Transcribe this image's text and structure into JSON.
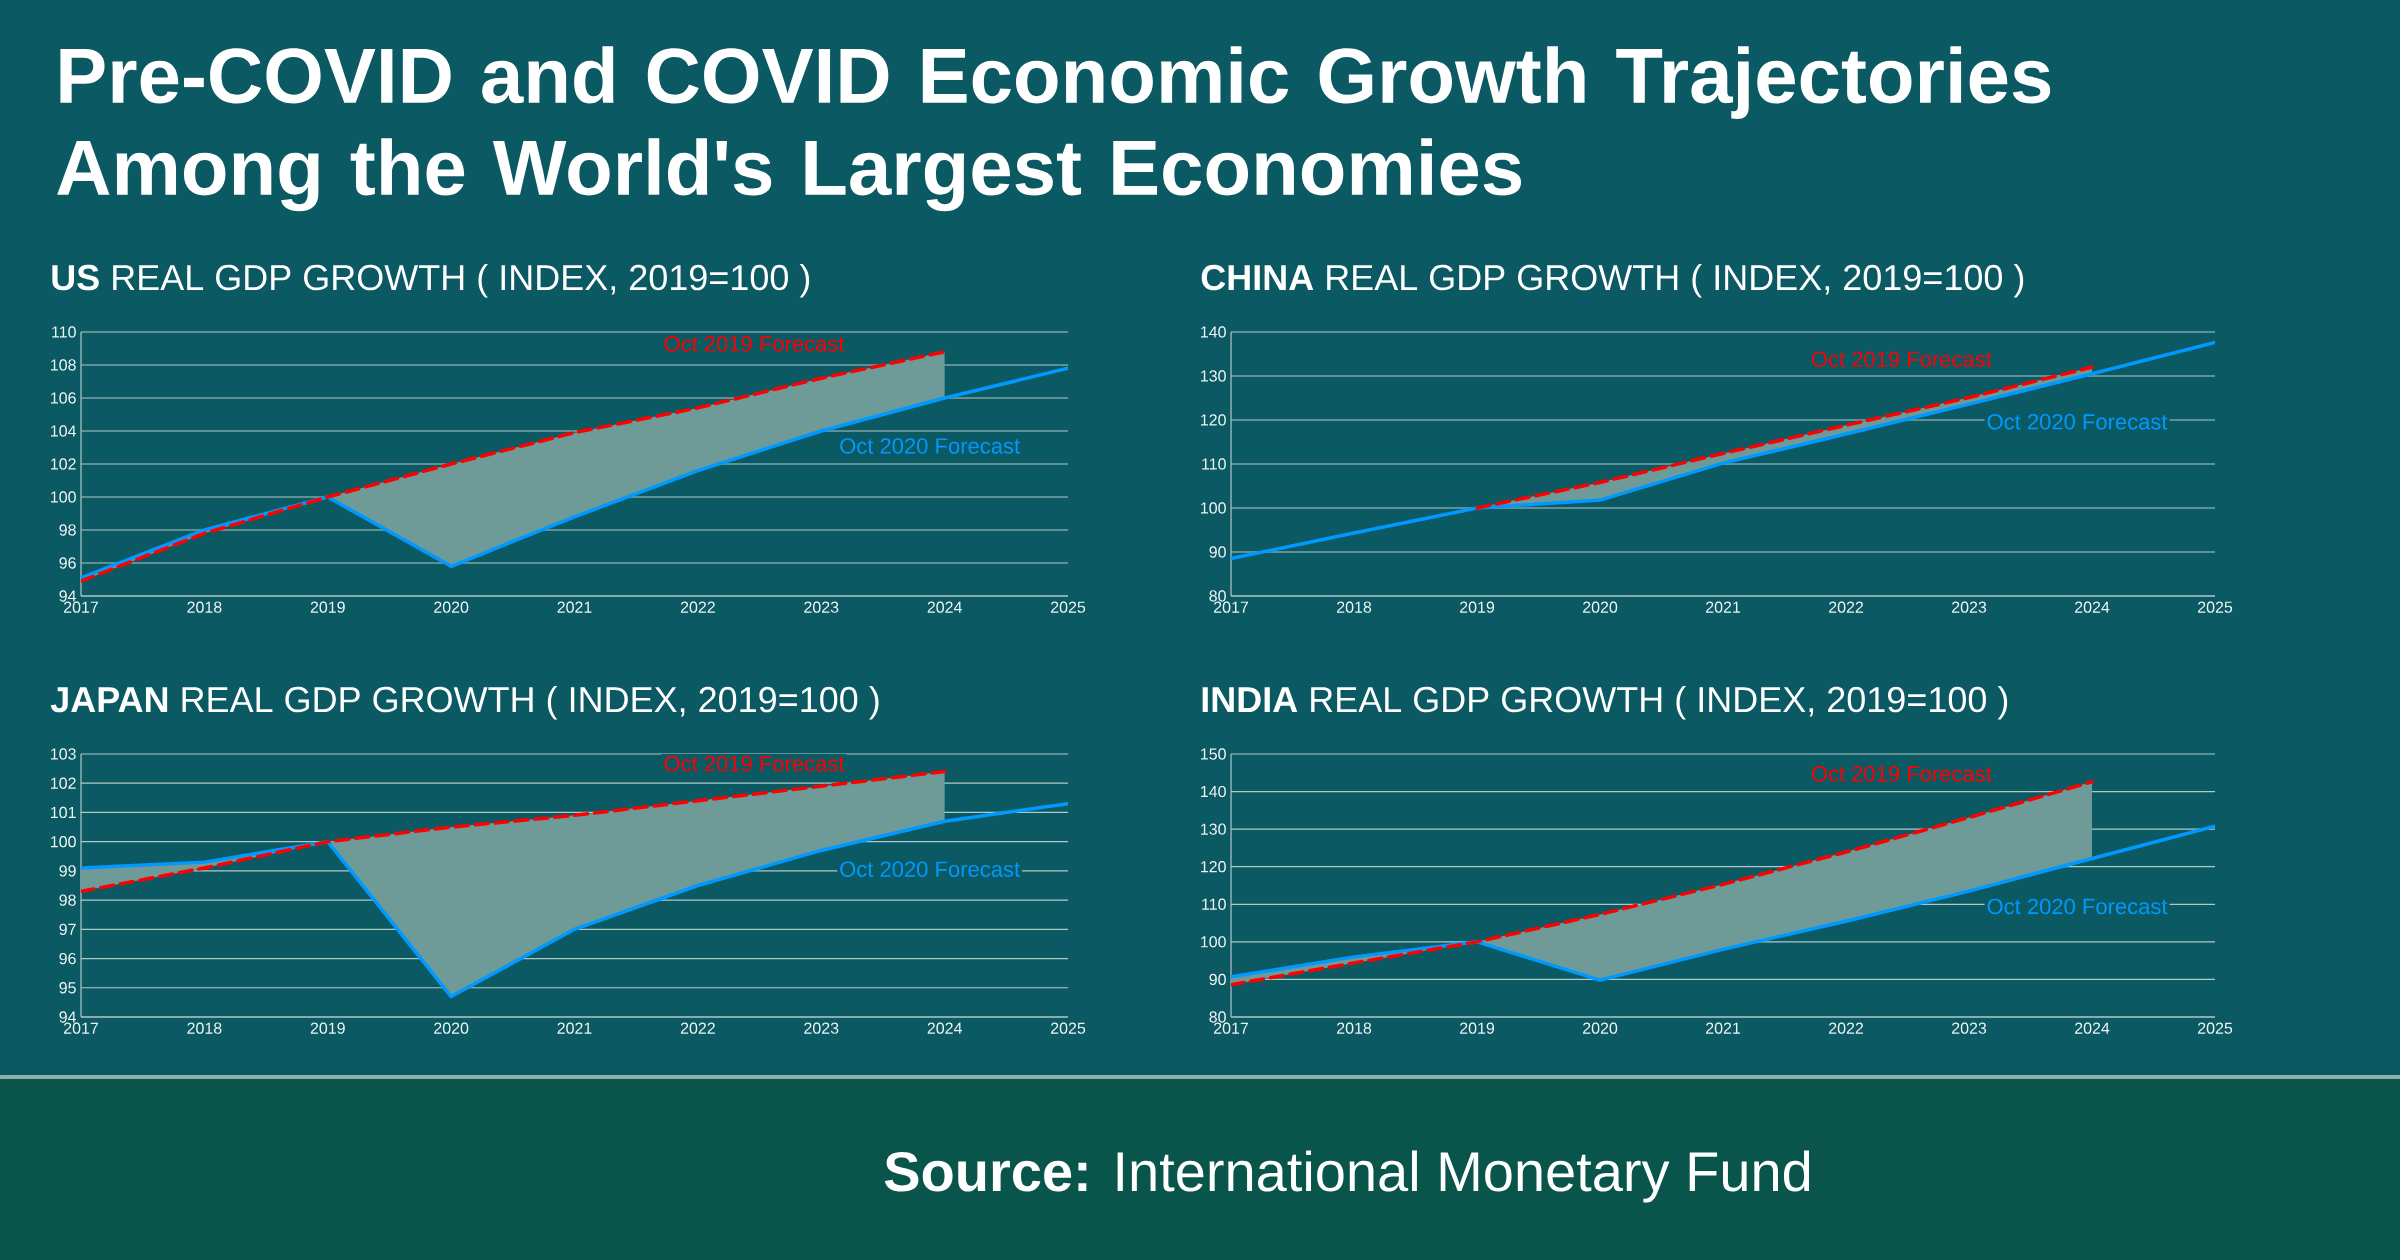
{
  "chart_data": [
    {
      "type": "other",
      "title": "Pre-COVID and COVID Economic Growth Trajectories Among the World's Largest Economies",
      "annotations": [
        "**Source:** International Monetary Fund"
      ]
    },
    {
      "type": "line",
      "title": "**US** REAL GDP GROWTH ( INDEX, 2019=100 )",
      "x": [
        2017,
        2018,
        2019,
        2020,
        2021,
        2022,
        2023,
        2024,
        2025
      ],
      "xlim": [
        2017,
        2025
      ],
      "xticks": [
        2017,
        2018,
        2019,
        2020,
        2021,
        2022,
        2023,
        2024,
        2025
      ],
      "ylim": [
        94,
        110
      ],
      "yticks": [
        94,
        96,
        98,
        100,
        102,
        104,
        106,
        108,
        110
      ],
      "grid": "y",
      "series": [
        {
          "name": "Oct 2020 Forecast",
          "color": "#0099ff",
          "line_style": "solid",
          "values": [
            95.1,
            98.0,
            100,
            95.8,
            98.8,
            101.6,
            104.0,
            106.0,
            107.8
          ]
        },
        {
          "name": "Oct 2019 Forecast",
          "color": "#ff0000",
          "line_style": "dashed",
          "values": [
            94.9,
            97.8,
            100,
            102.0,
            103.9,
            105.4,
            107.2,
            108.8,
            null
          ],
          "lower": [
            94.9,
            97.8,
            100,
            95.8,
            98.8,
            101.6,
            104.0,
            106.0,
            null
          ],
          "upper": [
            95.1,
            98.0,
            100,
            102.0,
            103.9,
            105.4,
            107.2,
            108.8,
            null
          ]
        }
      ]
    },
    {
      "type": "line",
      "title": "**CHINA** REAL GDP GROWTH ( INDEX, 2019=100 )",
      "x": [
        2017,
        2018,
        2019,
        2020,
        2021,
        2022,
        2023,
        2024,
        2025
      ],
      "xlim": [
        2017,
        2025
      ],
      "xticks": [
        2017,
        2018,
        2019,
        2020,
        2021,
        2022,
        2023,
        2024,
        2025
      ],
      "ylim": [
        80,
        140
      ],
      "yticks": [
        80,
        90,
        100,
        110,
        120,
        130,
        140
      ],
      "grid": "y",
      "series": [
        {
          "name": "Oct 2020 Forecast",
          "color": "#0099ff",
          "line_style": "solid",
          "values": [
            88.5,
            94.3,
            100,
            101.8,
            110.2,
            116.8,
            123.6,
            130.5,
            137.6
          ]
        },
        {
          "name": "Oct 2019 Forecast",
          "color": "#ff0000",
          "line_style": "dashed",
          "values": [
            null,
            null,
            100,
            105.8,
            112.4,
            118.8,
            125.1,
            132.0,
            null
          ],
          "lower": [
            null,
            null,
            100,
            101.8,
            110.2,
            116.8,
            123.6,
            130.5,
            null
          ],
          "upper": [
            null,
            null,
            100,
            105.8,
            112.4,
            118.8,
            125.1,
            132.0,
            null
          ]
        }
      ]
    },
    {
      "type": "line",
      "title": "**JAPAN** REAL GDP GROWTH ( INDEX, 2019=100 )",
      "x": [
        2017,
        2018,
        2019,
        2020,
        2021,
        2022,
        2023,
        2024,
        2025
      ],
      "xlim": [
        2017,
        2025
      ],
      "xticks": [
        2017,
        2018,
        2019,
        2020,
        2021,
        2022,
        2023,
        2024,
        2025
      ],
      "ylim": [
        94,
        103
      ],
      "yticks": [
        94,
        95,
        96,
        97,
        98,
        99,
        100,
        101,
        102,
        103
      ],
      "grid": "y",
      "series": [
        {
          "name": "Oct 2020 Forecast",
          "color": "#0099ff",
          "line_style": "solid",
          "values": [
            99.1,
            99.3,
            100,
            94.7,
            97.0,
            98.5,
            99.7,
            100.7,
            101.3
          ]
        },
        {
          "name": "Oct 2019 Forecast",
          "color": "#ff0000",
          "line_style": "dashed",
          "values": [
            98.3,
            99.1,
            100,
            100.5,
            100.9,
            101.4,
            101.9,
            102.4,
            null
          ],
          "lower": [
            98.3,
            99.1,
            100,
            94.7,
            97.0,
            98.5,
            99.7,
            100.7,
            null
          ],
          "upper": [
            99.1,
            99.3,
            100,
            100.5,
            100.9,
            101.4,
            101.9,
            102.4,
            null
          ]
        }
      ]
    },
    {
      "type": "line",
      "title": "**INDIA** REAL GDP GROWTH ( INDEX, 2019=100 )",
      "x": [
        2017,
        2018,
        2019,
        2020,
        2021,
        2022,
        2023,
        2024,
        2025
      ],
      "xlim": [
        2017,
        2025
      ],
      "xticks": [
        2017,
        2018,
        2019,
        2020,
        2021,
        2022,
        2023,
        2024,
        2025
      ],
      "ylim": [
        80,
        150
      ],
      "yticks": [
        80,
        90,
        100,
        110,
        120,
        130,
        140,
        150
      ],
      "grid": "y",
      "series": [
        {
          "name": "Oct 2020 Forecast",
          "color": "#0099ff",
          "line_style": "solid",
          "values": [
            90.7,
            96.0,
            100,
            89.8,
            98.0,
            105.5,
            113.5,
            122.2,
            130.8
          ]
        },
        {
          "name": "Oct 2019 Forecast",
          "color": "#ff0000",
          "line_style": "dashed",
          "values": [
            88.6,
            94.4,
            100,
            107.3,
            115.3,
            123.9,
            133.1,
            142.6,
            null
          ],
          "lower": [
            88.6,
            94.4,
            100,
            89.8,
            98.0,
            105.5,
            113.5,
            122.2,
            null
          ],
          "upper": [
            90.7,
            96.0,
            100,
            107.3,
            115.3,
            123.9,
            133.1,
            142.6,
            null
          ]
        }
      ]
    }
  ]
}
